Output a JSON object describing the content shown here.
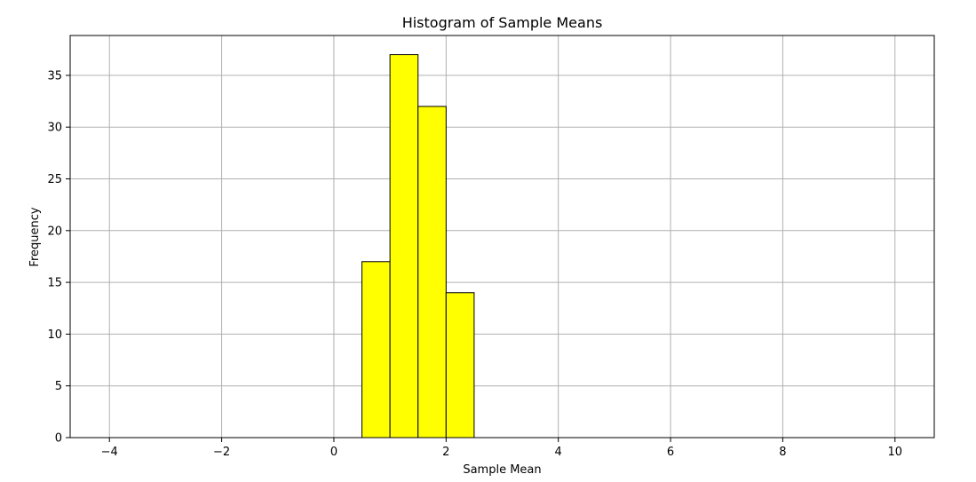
{
  "chart_data": {
    "type": "bar",
    "title": "Histogram of Sample Means",
    "xlabel": "Sample Mean",
    "ylabel": "Frequency",
    "xlim": [
      -4.7,
      10.7
    ],
    "ylim": [
      0,
      38.85
    ],
    "grid": true,
    "bar_color": "#ffff00",
    "edge_color": "#000000",
    "grid_color": "#b0b0b0",
    "bins": [
      {
        "x0": 0.5,
        "x1": 1.0,
        "value": 17
      },
      {
        "x0": 1.0,
        "x1": 1.5,
        "value": 37
      },
      {
        "x0": 1.5,
        "x1": 2.0,
        "value": 32
      },
      {
        "x0": 2.0,
        "x1": 2.5,
        "value": 14
      }
    ],
    "x_ticks": [
      -4,
      -2,
      0,
      2,
      4,
      6,
      8,
      10
    ],
    "x_tick_labels": [
      "−4",
      "−2",
      "0",
      "2",
      "4",
      "6",
      "8",
      "10"
    ],
    "y_ticks": [
      0,
      5,
      10,
      15,
      20,
      25,
      30,
      35
    ],
    "y_tick_labels": [
      "0",
      "5",
      "10",
      "15",
      "20",
      "25",
      "30",
      "35"
    ]
  }
}
